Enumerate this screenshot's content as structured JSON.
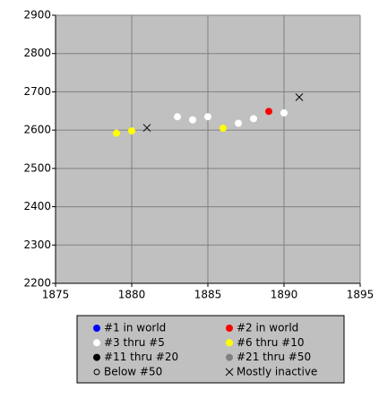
{
  "chart_data": {
    "type": "scatter",
    "xlim": [
      1875,
      1895
    ],
    "xticks": [
      1875,
      1880,
      1885,
      1890,
      1895
    ],
    "ylim": [
      2200,
      2900
    ],
    "yticks": [
      2200,
      2300,
      2400,
      2500,
      2600,
      2700,
      2800,
      2900
    ],
    "grid": true,
    "legend": "bottom",
    "series": [
      {
        "name": "#1 in world",
        "color": "#0000ff",
        "marker": "circle",
        "x": [],
        "values": []
      },
      {
        "name": "#2 in world",
        "color": "#ff0000",
        "marker": "circle",
        "x": [
          1889
        ],
        "values": [
          2649
        ]
      },
      {
        "name": "#3 thru #5",
        "color": "#ffffff",
        "marker": "circle",
        "x": [
          1883,
          1884,
          1885,
          1887,
          1888,
          1890
        ],
        "values": [
          2635,
          2627,
          2635,
          2618,
          2630,
          2645
        ]
      },
      {
        "name": "#6 thru #10",
        "color": "#ffff00",
        "marker": "circle",
        "x": [
          1879,
          1880,
          1886
        ],
        "values": [
          2592,
          2598,
          2605
        ]
      },
      {
        "name": "#11 thru #20",
        "color": "#000000",
        "marker": "circle",
        "x": [],
        "values": []
      },
      {
        "name": "#21 thru #50",
        "color": "#808080",
        "marker": "circle",
        "x": [],
        "values": []
      },
      {
        "name": "Below #50",
        "color": "#000000",
        "marker": "open-circle",
        "x": [],
        "values": []
      },
      {
        "name": "Mostly inactive",
        "color": "#000000",
        "marker": "x",
        "x": [
          1881,
          1891
        ],
        "values": [
          2606,
          2686
        ]
      }
    ]
  }
}
